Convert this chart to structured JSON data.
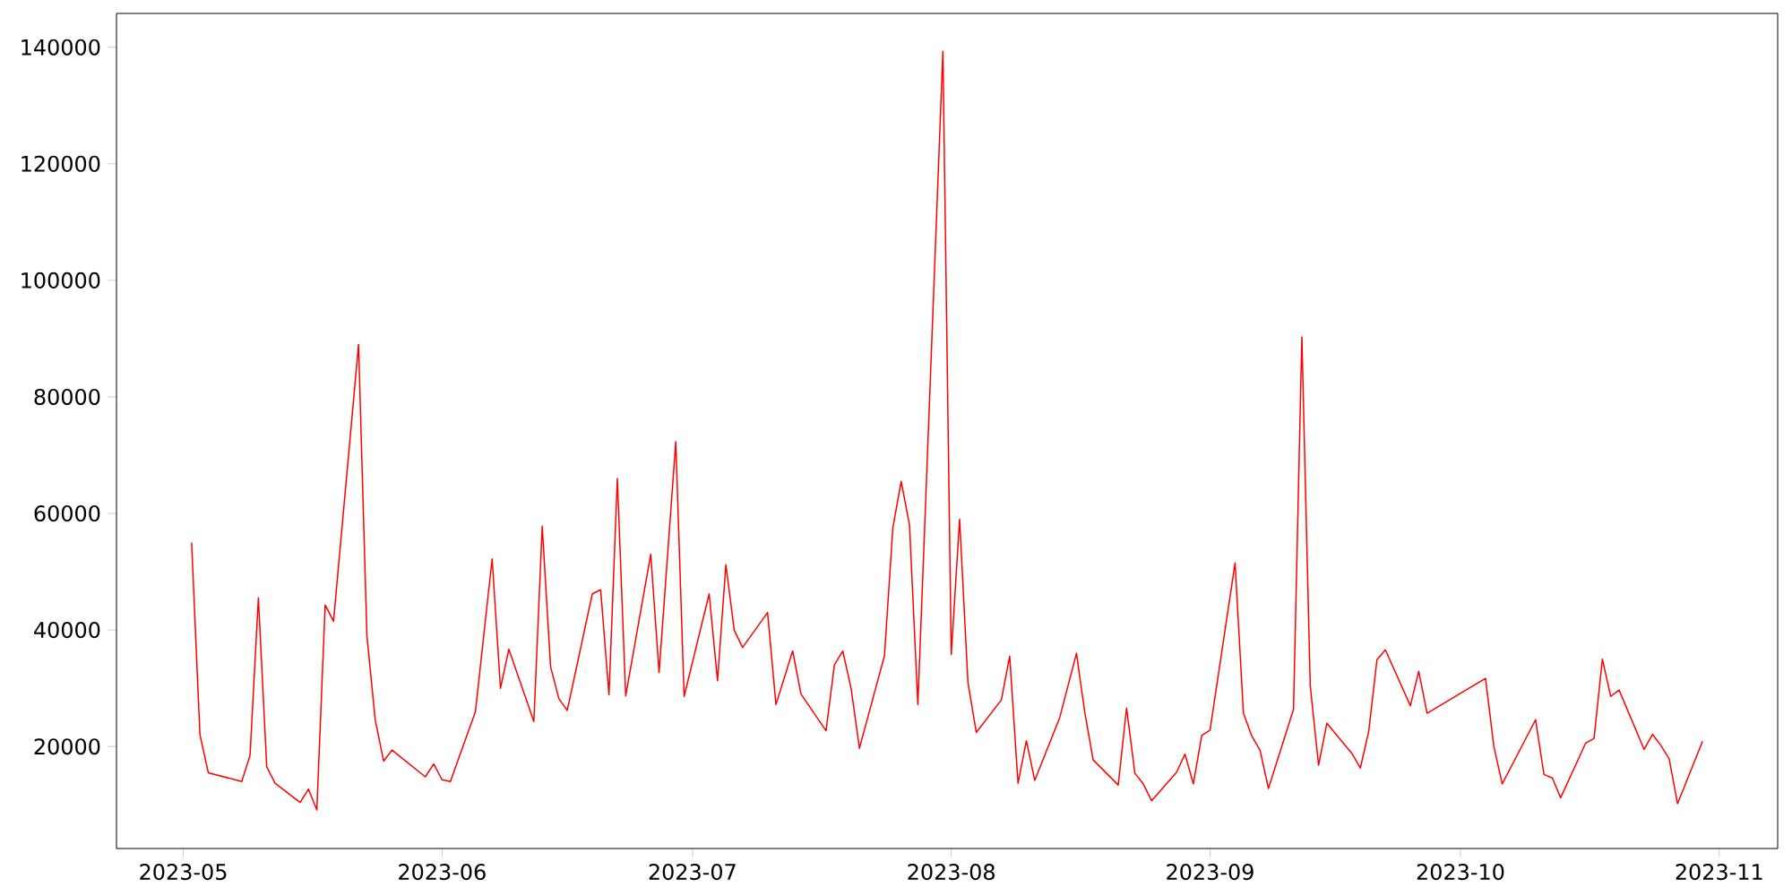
{
  "chart_data": {
    "type": "line",
    "color": "#ff0000",
    "x": [
      "2023-05-02",
      "2023-05-03",
      "2023-05-04",
      "2023-05-08",
      "2023-05-09",
      "2023-05-10",
      "2023-05-11",
      "2023-05-12",
      "2023-05-15",
      "2023-05-16",
      "2023-05-17",
      "2023-05-18",
      "2023-05-19",
      "2023-05-22",
      "2023-05-23",
      "2023-05-24",
      "2023-05-25",
      "2023-05-26",
      "2023-05-30",
      "2023-05-31",
      "2023-06-01",
      "2023-06-02",
      "2023-06-05",
      "2023-06-07",
      "2023-06-08",
      "2023-06-09",
      "2023-06-12",
      "2023-06-13",
      "2023-06-14",
      "2023-06-15",
      "2023-06-16",
      "2023-06-19",
      "2023-06-20",
      "2023-06-21",
      "2023-06-22",
      "2023-06-23",
      "2023-06-26",
      "2023-06-27",
      "2023-06-29",
      "2023-06-30",
      "2023-07-03",
      "2023-07-04",
      "2023-07-05",
      "2023-07-06",
      "2023-07-07",
      "2023-07-10",
      "2023-07-11",
      "2023-07-13",
      "2023-07-14",
      "2023-07-17",
      "2023-07-18",
      "2023-07-19",
      "2023-07-20",
      "2023-07-21",
      "2023-07-24",
      "2023-07-25",
      "2023-07-26",
      "2023-07-27",
      "2023-07-28",
      "2023-07-31",
      "2023-08-01",
      "2023-08-02",
      "2023-08-03",
      "2023-08-04",
      "2023-08-07",
      "2023-08-08",
      "2023-08-09",
      "2023-08-10",
      "2023-08-11",
      "2023-08-14",
      "2023-08-16",
      "2023-08-17",
      "2023-08-18",
      "2023-08-21",
      "2023-08-22",
      "2023-08-23",
      "2023-08-24",
      "2023-08-25",
      "2023-08-28",
      "2023-08-29",
      "2023-08-30",
      "2023-08-31",
      "2023-09-01",
      "2023-09-04",
      "2023-09-05",
      "2023-09-06",
      "2023-09-07",
      "2023-09-08",
      "2023-09-11",
      "2023-09-12",
      "2023-09-13",
      "2023-09-14",
      "2023-09-15",
      "2023-09-18",
      "2023-09-19",
      "2023-09-20",
      "2023-09-21",
      "2023-09-22",
      "2023-09-25",
      "2023-09-26",
      "2023-09-27",
      "2023-10-04",
      "2023-10-05",
      "2023-10-06",
      "2023-10-10",
      "2023-10-11",
      "2023-10-12",
      "2023-10-13",
      "2023-10-16",
      "2023-10-17",
      "2023-10-18",
      "2023-10-19",
      "2023-10-20",
      "2023-10-23",
      "2023-10-24",
      "2023-10-25",
      "2023-10-26",
      "2023-10-27",
      "2023-10-30"
    ],
    "values": [
      55000,
      22000,
      15500,
      14000,
      18500,
      45500,
      16500,
      13700,
      10400,
      12700,
      9100,
      44300,
      41500,
      89000,
      39000,
      24500,
      17500,
      19400,
      14800,
      17000,
      14300,
      14000,
      26000,
      52200,
      30000,
      36700,
      24300,
      57800,
      33700,
      28200,
      26200,
      46200,
      46900,
      28900,
      66000,
      28700,
      53000,
      32700,
      72300,
      28600,
      46200,
      31300,
      51200,
      40000,
      37000,
      43000,
      27200,
      36400,
      29000,
      22700,
      34000,
      36400,
      30000,
      19700,
      35600,
      57500,
      65500,
      58000,
      27200,
      139300,
      35800,
      59000,
      31000,
      22400,
      28000,
      35500,
      13700,
      21000,
      14200,
      25000,
      36000,
      25800,
      17700,
      13400,
      26600,
      15400,
      13600,
      10700,
      15600,
      18700,
      13600,
      21900,
      22800,
      51500,
      25700,
      21800,
      19300,
      12800,
      26400,
      90300,
      30500,
      16800,
      24000,
      18800,
      16300,
      22500,
      34900,
      36600,
      27000,
      32900,
      25700,
      31700,
      20000,
      13600,
      24600,
      15200,
      14600,
      11200,
      20600,
      21400,
      35000,
      28600,
      29700,
      19500,
      22100,
      20200,
      17900,
      10200,
      20900
    ],
    "xlim": [
      "2023-04-23",
      "2023-11-08"
    ],
    "xticks": [
      "2023-05",
      "2023-06",
      "2023-07",
      "2023-08",
      "2023-09",
      "2023-10",
      "2023-11"
    ],
    "ylim": [
      2500,
      145800
    ],
    "yticks": [
      20000,
      40000,
      60000,
      80000,
      100000,
      120000,
      140000
    ]
  }
}
